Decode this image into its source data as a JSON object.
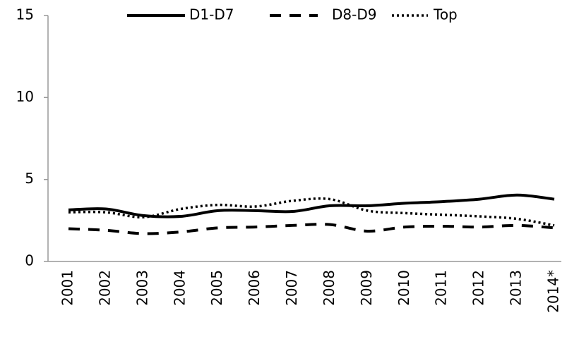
{
  "chart_data": {
    "type": "line",
    "categories": [
      "2001",
      "2002",
      "2003",
      "2004",
      "2005",
      "2006",
      "2007",
      "2008",
      "2009",
      "2010",
      "2011",
      "2012",
      "2013",
      "2014*"
    ],
    "series": [
      {
        "name": "D1-D7",
        "color": "#000000",
        "style": "solid",
        "values": [
          3.15,
          3.2,
          2.8,
          2.75,
          3.1,
          3.1,
          3.05,
          3.4,
          3.4,
          3.55,
          3.65,
          3.8,
          4.05,
          3.8
        ]
      },
      {
        "name": "D8-D9",
        "color": "#000000",
        "style": "dashed",
        "values": [
          2.0,
          1.9,
          1.7,
          1.8,
          2.05,
          2.1,
          2.2,
          2.25,
          1.85,
          2.1,
          2.15,
          2.1,
          2.2,
          2.05
        ]
      },
      {
        "name": "Top",
        "color": "#000000",
        "style": "dotted",
        "values": [
          3.0,
          3.0,
          2.7,
          3.2,
          3.45,
          3.35,
          3.7,
          3.8,
          3.1,
          2.95,
          2.85,
          2.75,
          2.6,
          2.2
        ]
      }
    ],
    "ylim": [
      0,
      15
    ],
    "yticks": [
      0,
      5,
      10,
      15
    ],
    "grid": false,
    "legend": "top"
  }
}
